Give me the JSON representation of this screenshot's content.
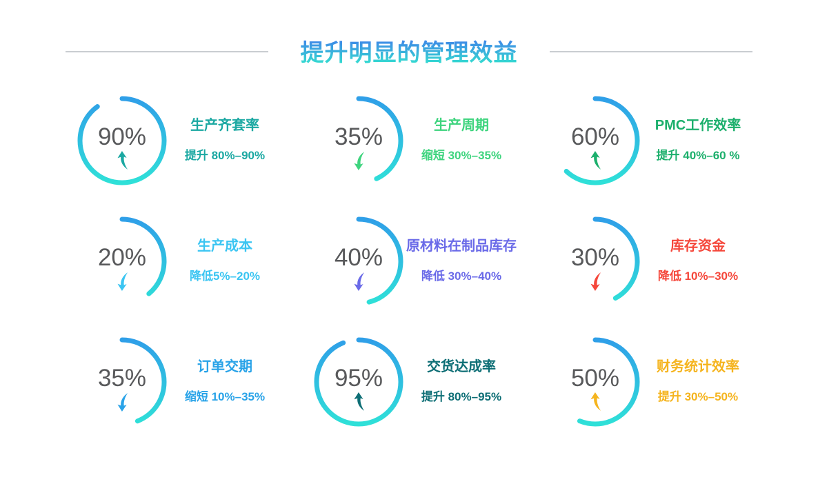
{
  "title": {
    "text": "提升明显的管理效益"
  },
  "colors": {
    "title_gradient_start": "#3E86E8",
    "title_gradient_end": "#34E6CE",
    "ring_gradient_start": "#2F9FE8",
    "ring_gradient_end": "#2FE0D8",
    "value_text": "#58595B",
    "divider_line": "#C9CDD1"
  },
  "chart_data": {
    "type": "gauge-grid",
    "layout": "3x3",
    "items": [
      {
        "value": "90%",
        "label": "生产齐套率",
        "desc": "提升 80%–90%",
        "direction": "up",
        "color": "#1BA8A2",
        "arc_percent": 90
      },
      {
        "value": "35%",
        "label": "生产周期",
        "desc": "缩短 30%–35%",
        "direction": "down",
        "color": "#3ED47E",
        "arc_percent": 43
      },
      {
        "value": "60%",
        "label": "PMC工作效率",
        "desc": "提升 40%–60 %",
        "direction": "up",
        "color": "#1CAF6C",
        "arc_percent": 62
      },
      {
        "value": "20%",
        "label": "生产成本",
        "desc": "降低5%–20%",
        "direction": "down",
        "color": "#3BC5F2",
        "arc_percent": 39
      },
      {
        "value": "40%",
        "label": "原材料在制品库存",
        "desc": "降低 30%–40%",
        "direction": "down",
        "color": "#6A6AE8",
        "arc_percent": 46
      },
      {
        "value": "30%",
        "label": "库存资金",
        "desc": "降低 10%–30%",
        "direction": "down",
        "color": "#F5473B",
        "arc_percent": 42
      },
      {
        "value": "35%",
        "label": "订单交期",
        "desc": "缩短 10%–35%",
        "direction": "down",
        "color": "#29A3E8",
        "arc_percent": 44
      },
      {
        "value": "95%",
        "label": "交货达成率",
        "desc": "提升 80%–95%",
        "direction": "up",
        "color": "#0D6E75",
        "arc_percent": 94
      },
      {
        "value": "50%",
        "label": "财务统计效率",
        "desc": "提升 30%–50%",
        "direction": "up",
        "color": "#F5B41E",
        "arc_percent": 56
      }
    ]
  }
}
